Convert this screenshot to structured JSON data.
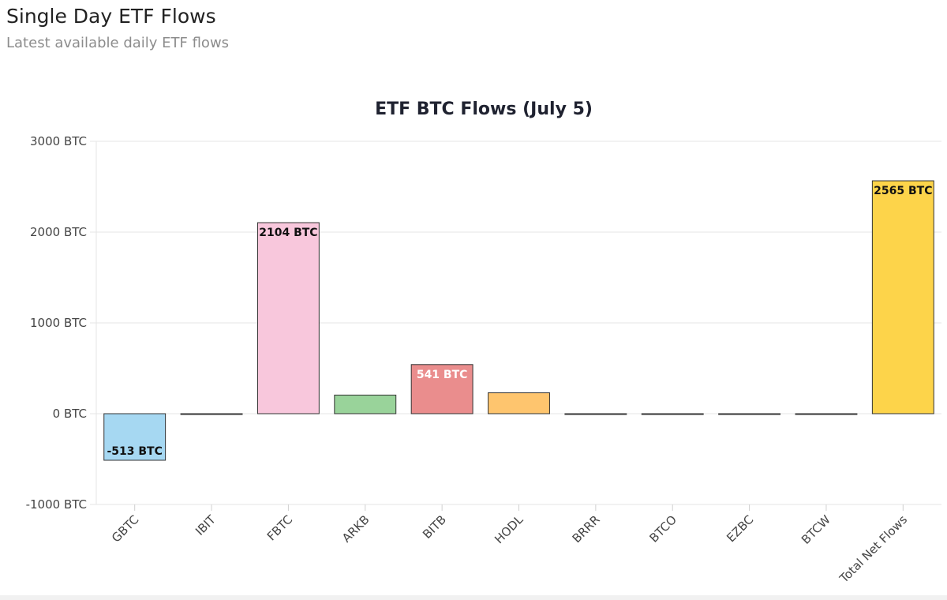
{
  "header": {
    "title": "Single Day ETF Flows",
    "subtitle": "Latest available daily ETF flows"
  },
  "chart_data": {
    "type": "bar",
    "title": "ETF BTC Flows (July 5)",
    "xlabel": "",
    "ylabel": "",
    "unit": "BTC",
    "ylim": [
      -1000,
      3000
    ],
    "yticks": [
      3000,
      2000,
      1000,
      0,
      -1000
    ],
    "ytick_labels": [
      "3000 BTC",
      "2000 BTC",
      "1000 BTC",
      "0 BTC",
      "-1000 BTC"
    ],
    "grid": true,
    "categories": [
      "GBTC",
      "IBIT",
      "FBTC",
      "ARKB",
      "BITB",
      "HODL",
      "BRRR",
      "BTCO",
      "EZBC",
      "BTCW",
      "Total Net Flows"
    ],
    "values": [
      -513,
      0,
      2104,
      205,
      541,
      230,
      0,
      0,
      0,
      0,
      2565
    ],
    "data_labels": [
      "-513 BTC",
      "",
      "2104 BTC",
      "",
      "541 BTC",
      "",
      "",
      "",
      "",
      "",
      "2565 BTC"
    ],
    "colors": [
      "#a6d8f2",
      "#cccccc",
      "#f8c7dc",
      "#99d39a",
      "#ea8d8d",
      "#fec56e",
      "#cccccc",
      "#cccccc",
      "#cccccc",
      "#cccccc",
      "#fdd44a"
    ],
    "label_colors": [
      "#111111",
      "#111111",
      "#111111",
      "#111111",
      "#ffffff",
      "#111111",
      "#111111",
      "#111111",
      "#111111",
      "#111111",
      "#111111"
    ]
  }
}
